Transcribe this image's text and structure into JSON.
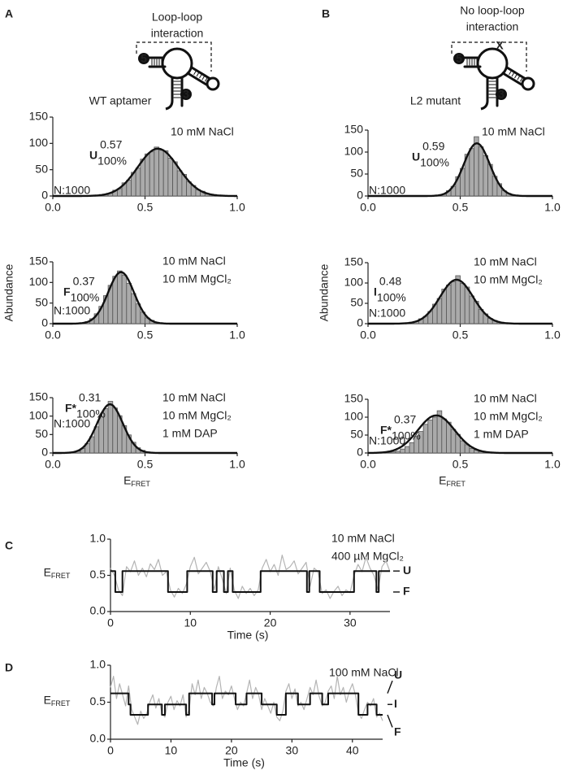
{
  "panels": [
    "A",
    "B",
    "C",
    "D"
  ],
  "diagrams": [
    {
      "label": [
        "Loop-loop",
        "interaction"
      ],
      "name": "WT aptamer",
      "ends": [
        "5",
        "3"
      ]
    },
    {
      "label": [
        "No loop-loop",
        "interaction"
      ],
      "mark": "X",
      "name": "L2 mutant",
      "ends": [
        "5",
        "3"
      ]
    }
  ],
  "chart_data": [
    {
      "type": "histogram",
      "color": "#aaaaaa",
      "fit_color": "#111111",
      "bins": [
        0.25,
        0.275,
        0.3,
        0.325,
        0.35,
        0.375,
        0.4,
        0.425,
        0.45,
        0.475,
        0.5,
        0.525,
        0.55,
        0.575,
        0.6,
        0.625,
        0.65,
        0.675,
        0.7,
        0.725,
        0.75,
        0.775,
        0.8,
        0.825,
        0.85,
        0.875
      ],
      "values": [
        2,
        3,
        5,
        11,
        14,
        25,
        30,
        45,
        53,
        70,
        80,
        84,
        93,
        87,
        86,
        72,
        65,
        48,
        41,
        27,
        20,
        12,
        9,
        4,
        3
      ],
      "fit": {
        "mean": 0.57,
        "sd": 0.11,
        "amplitude": 90
      },
      "state": "U",
      "fraction": "100%",
      "n_label": "N:1000",
      "conditions": [
        "10 mM NaCl"
      ],
      "xlim": [
        0,
        1
      ],
      "xticks": [
        {
          "value": 0,
          "label": "0.0"
        },
        0.5,
        {
          "value": 1,
          "label": "1.0"
        }
      ],
      "ylim": [
        0,
        150
      ],
      "yticks": [
        0,
        50,
        100,
        150
      ]
    },
    {
      "type": "histogram",
      "color": "#aaaaaa",
      "fit_color": "#111111",
      "bins": [
        0.35,
        0.375,
        0.4,
        0.425,
        0.45,
        0.475,
        0.5,
        0.525,
        0.55,
        0.575,
        0.6,
        0.625,
        0.65,
        0.675,
        0.7,
        0.725,
        0.75,
        0.775,
        0.8,
        0.825
      ],
      "values": [
        1,
        2,
        4,
        12,
        22,
        44,
        63,
        95,
        108,
        135,
        112,
        92,
        72,
        45,
        28,
        12,
        6,
        2,
        1
      ],
      "fit": {
        "mean": 0.59,
        "sd": 0.07,
        "amplitude": 120
      },
      "state": "U",
      "fraction": "100%",
      "n_label": "N:1000",
      "conditions": [
        "10 mM NaCl"
      ],
      "xlim": [
        0,
        1
      ],
      "xticks": [
        {
          "value": 0,
          "label": "0.0"
        },
        0.5,
        {
          "value": 1,
          "label": "1.0"
        }
      ],
      "ylim": [
        0,
        150
      ],
      "yticks": [
        0,
        50,
        100,
        150
      ]
    },
    {
      "type": "histogram",
      "color": "#aaaaaa",
      "fit_color": "#111111",
      "bins": [
        0.125,
        0.15,
        0.175,
        0.2,
        0.225,
        0.25,
        0.275,
        0.3,
        0.325,
        0.35,
        0.375,
        0.4,
        0.425,
        0.45,
        0.475,
        0.5,
        0.525,
        0.55,
        0.575,
        0.6
      ],
      "values": [
        1,
        2,
        5,
        12,
        24,
        42,
        68,
        93,
        115,
        128,
        118,
        98,
        73,
        48,
        28,
        14,
        8,
        3,
        1
      ],
      "fit": {
        "mean": 0.37,
        "sd": 0.07,
        "amplitude": 125
      },
      "state": "F",
      "fraction": "100%",
      "n_label": "N:1000",
      "conditions": [
        "10 mM NaCl",
        "10 mM MgCl₂"
      ],
      "ylabel": "Abundance",
      "xlim": [
        0,
        1
      ],
      "xticks": [
        {
          "value": 0,
          "label": "0.0"
        },
        0.5,
        {
          "value": 1,
          "label": "1.0"
        }
      ],
      "ylim": [
        0,
        150
      ],
      "yticks": [
        0,
        50,
        100,
        150
      ]
    },
    {
      "type": "histogram",
      "color": "#aaaaaa",
      "fit_color": "#111111",
      "bins": [
        0.2,
        0.225,
        0.25,
        0.275,
        0.3,
        0.325,
        0.35,
        0.375,
        0.4,
        0.425,
        0.45,
        0.475,
        0.5,
        0.525,
        0.55,
        0.575,
        0.6,
        0.625,
        0.65,
        0.675,
        0.7,
        0.725,
        0.75,
        0.775,
        0.8
      ],
      "values": [
        1,
        3,
        5,
        12,
        18,
        30,
        48,
        62,
        85,
        95,
        103,
        118,
        99,
        90,
        68,
        55,
        35,
        24,
        13,
        8,
        4,
        2,
        1,
        1
      ],
      "fit": {
        "mean": 0.48,
        "sd": 0.09,
        "amplitude": 108
      },
      "state": "I",
      "fraction": "100%",
      "n_label": "N:1000",
      "conditions": [
        "10 mM NaCl",
        "10 mM MgCl₂"
      ],
      "ylabel": "Abundance",
      "xlim": [
        0,
        1
      ],
      "xticks": [
        {
          "value": 0,
          "label": "0.0"
        },
        0.5,
        {
          "value": 1,
          "label": "1.0"
        }
      ],
      "ylim": [
        0,
        150
      ],
      "yticks": [
        0,
        50,
        100,
        150
      ]
    },
    {
      "type": "histogram",
      "color": "#aaaaaa",
      "fit_color": "#111111",
      "bins": [
        0.075,
        0.1,
        0.125,
        0.15,
        0.175,
        0.2,
        0.225,
        0.25,
        0.275,
        0.3,
        0.325,
        0.35,
        0.375,
        0.4,
        0.425,
        0.45,
        0.475,
        0.5,
        0.525,
        0.55
      ],
      "values": [
        1,
        2,
        5,
        12,
        25,
        44,
        71,
        98,
        120,
        140,
        122,
        101,
        74,
        49,
        29,
        14,
        7,
        3,
        1
      ],
      "fit": {
        "mean": 0.31,
        "sd": 0.07,
        "amplitude": 132
      },
      "state": "F*",
      "fraction": "100%",
      "n_label": "N:1000",
      "conditions": [
        "10 mM NaCl",
        "10 mM MgCl₂",
        "1 mM DAP"
      ],
      "xlabel": "E",
      "xlabel_sub": "FRET",
      "xlim": [
        0,
        1
      ],
      "xticks": [
        {
          "value": 0,
          "label": "0.0"
        },
        0.5,
        {
          "value": 1,
          "label": "1.0"
        }
      ],
      "ylim": [
        0,
        150
      ],
      "yticks": [
        0,
        50,
        100,
        150
      ]
    },
    {
      "type": "histogram",
      "color": "#aaaaaa",
      "fit_color": "#111111",
      "bins": [
        0.1,
        0.125,
        0.15,
        0.175,
        0.2,
        0.225,
        0.25,
        0.275,
        0.3,
        0.325,
        0.35,
        0.375,
        0.4,
        0.425,
        0.45,
        0.475,
        0.5,
        0.525,
        0.55,
        0.575,
        0.6,
        0.625,
        0.65,
        0.675,
        0.7
      ],
      "values": [
        1,
        3,
        5,
        11,
        18,
        29,
        46,
        60,
        80,
        92,
        100,
        118,
        95,
        86,
        66,
        52,
        34,
        23,
        13,
        8,
        4,
        2,
        1,
        1
      ],
      "fit": {
        "mean": 0.37,
        "sd": 0.1,
        "amplitude": 105
      },
      "state": "F*",
      "fraction": "100%",
      "n_label": "N:1000",
      "conditions": [
        "10 mM NaCl",
        "10 mM MgCl₂",
        "1 mM DAP"
      ],
      "xlabel": "E",
      "xlabel_sub": "FRET",
      "xlim": [
        0,
        1
      ],
      "xticks": [
        {
          "value": 0,
          "label": "0.0"
        },
        0.5,
        {
          "value": 1,
          "label": "1.0"
        }
      ],
      "ylim": [
        0,
        150
      ],
      "yticks": [
        0,
        50,
        100,
        150
      ]
    },
    {
      "type": "trace",
      "conditions": [
        "10 mM NaCl",
        "400 µM MgCl₂"
      ],
      "xlabel": "Time (s)",
      "ylabel": "E",
      "ylabel_sub": "FRET",
      "xlim": [
        0,
        35
      ],
      "xticks": [
        0,
        10,
        20,
        30
      ],
      "ylim": [
        0,
        1
      ],
      "yticks": [
        {
          "value": 0,
          "label": "0.0"
        },
        0.5,
        {
          "value": 1,
          "label": "1.0"
        }
      ],
      "series": [
        {
          "color": "#b4b4b4",
          "x": [
            0,
            0.5,
            1,
            1.5,
            2,
            2.5,
            3,
            3.5,
            4,
            4.5,
            5,
            5.5,
            6,
            6.5,
            7,
            7.5,
            8,
            8.5,
            9,
            9.5,
            10,
            10.5,
            11,
            11.5,
            12,
            12.5,
            13,
            13.5,
            14,
            14.5,
            15,
            15.5,
            16,
            16.5,
            17,
            17.5,
            18,
            18.5,
            19,
            19.5,
            20,
            20.5,
            21,
            21.5,
            22,
            22.5,
            23,
            23.5,
            24,
            24.5,
            25,
            25.5,
            26,
            26.5,
            27,
            27.5,
            28,
            28.5,
            29,
            29.5,
            30,
            30.5,
            31,
            31.5,
            32,
            32.5,
            33,
            33.5,
            34,
            34.5,
            35
          ],
          "values": [
            0.6,
            0.5,
            0.3,
            0.22,
            0.62,
            0.55,
            0.7,
            0.5,
            0.6,
            0.48,
            0.66,
            0.58,
            0.72,
            0.5,
            0.55,
            0.3,
            0.2,
            0.32,
            0.25,
            0.38,
            0.62,
            0.75,
            0.52,
            0.6,
            0.68,
            0.55,
            0.3,
            0.62,
            0.45,
            0.25,
            0.6,
            0.3,
            0.18,
            0.35,
            0.25,
            0.32,
            0.22,
            0.3,
            0.6,
            0.72,
            0.55,
            0.65,
            0.5,
            0.78,
            0.58,
            0.62,
            0.7,
            0.52,
            0.6,
            0.68,
            0.35,
            0.6,
            0.55,
            0.25,
            0.3,
            0.18,
            0.28,
            0.35,
            0.22,
            0.3,
            0.26,
            0.5,
            0.65,
            0.55,
            0.75,
            0.6,
            0.5,
            0.3,
            0.62,
            0.7,
            0.55
          ]
        },
        {
          "color": "#111111",
          "x": [
            0,
            0.6,
            0.6,
            1.5,
            1.5,
            7.2,
            7.2,
            9.6,
            9.6,
            12.8,
            12.8,
            13.3,
            13.3,
            14.2,
            14.2,
            14.7,
            14.7,
            15.3,
            15.3,
            18.8,
            18.8,
            24.6,
            24.6,
            24.9,
            24.9,
            26.2,
            26.2,
            30.5,
            30.5,
            33.3,
            33.3,
            33.6,
            33.6,
            35
          ],
          "values": [
            0.56,
            0.56,
            0.27,
            0.27,
            0.56,
            0.56,
            0.27,
            0.27,
            0.56,
            0.56,
            0.27,
            0.27,
            0.56,
            0.56,
            0.27,
            0.27,
            0.56,
            0.56,
            0.27,
            0.27,
            0.56,
            0.56,
            0.27,
            0.27,
            0.56,
            0.56,
            0.27,
            0.27,
            0.56,
            0.56,
            0.27,
            0.27,
            0.56,
            0.56
          ]
        }
      ],
      "state_labels": [
        {
          "label": "U",
          "value": 0.56
        },
        {
          "label": "F",
          "value": 0.27
        }
      ]
    },
    {
      "type": "trace",
      "conditions": [
        "100 mM NaCl"
      ],
      "xlabel": "Time (s)",
      "ylabel": "E",
      "ylabel_sub": "FRET",
      "xlim": [
        0,
        45
      ],
      "xticks": [
        0,
        10,
        20,
        30,
        40
      ],
      "ylim": [
        0,
        1
      ],
      "yticks": [
        {
          "value": 0,
          "label": "0.0"
        },
        0.5,
        {
          "value": 1,
          "label": "1.0"
        }
      ],
      "series": [
        {
          "color": "#b4b4b4",
          "x": [
            0,
            0.5,
            1,
            1.5,
            2,
            2.5,
            3,
            3.5,
            4,
            4.5,
            5,
            5.5,
            6,
            6.5,
            7,
            7.5,
            8,
            8.5,
            9,
            9.5,
            10,
            10.5,
            11,
            11.5,
            12,
            12.5,
            13,
            13.5,
            14,
            14.5,
            15,
            15.5,
            16,
            16.5,
            17,
            17.5,
            18,
            18.5,
            19,
            19.5,
            20,
            20.5,
            21,
            21.5,
            22,
            22.5,
            23,
            23.5,
            24,
            24.5,
            25,
            25.5,
            26,
            26.5,
            27,
            27.5,
            28,
            28.5,
            29,
            29.5,
            30,
            30.5,
            31,
            31.5,
            32,
            32.5,
            33,
            33.5,
            34,
            34.5,
            35,
            35.5,
            36,
            36.5,
            37,
            37.5,
            38,
            38.5,
            39,
            39.5,
            40,
            40.5,
            41,
            41.5,
            42,
            42.5,
            43,
            43.5,
            44,
            44.5,
            45
          ],
          "values": [
            0.7,
            0.85,
            0.55,
            0.75,
            0.6,
            0.45,
            0.72,
            0.4,
            0.3,
            0.2,
            0.38,
            0.28,
            0.35,
            0.5,
            0.6,
            0.42,
            0.55,
            0.35,
            0.3,
            0.5,
            0.58,
            0.4,
            0.52,
            0.45,
            0.6,
            0.3,
            0.4,
            0.75,
            0.6,
            0.8,
            0.55,
            0.7,
            0.62,
            0.5,
            0.45,
            0.7,
            0.85,
            0.55,
            0.65,
            0.6,
            0.72,
            0.55,
            0.4,
            0.5,
            0.45,
            0.62,
            0.8,
            0.55,
            0.7,
            0.6,
            0.4,
            0.55,
            0.45,
            0.35,
            0.5,
            0.3,
            0.25,
            0.38,
            0.65,
            0.75,
            0.55,
            0.68,
            0.45,
            0.5,
            0.4,
            0.55,
            0.7,
            0.6,
            0.8,
            0.58,
            0.45,
            0.5,
            0.65,
            0.72,
            0.55,
            0.85,
            0.6,
            0.7,
            0.5,
            0.65,
            0.75,
            0.6,
            0.35,
            0.28,
            0.4,
            0.5,
            0.45,
            0.55,
            0.3,
            0.35,
            0.25
          ]
        },
        {
          "color": "#111111",
          "x": [
            0,
            3,
            3,
            3.3,
            3.3,
            6.2,
            6.2,
            8.5,
            8.5,
            9,
            9,
            12.5,
            12.5,
            13,
            13,
            16.8,
            16.8,
            17.2,
            17.2,
            20.7,
            20.7,
            22.5,
            22.5,
            25,
            25,
            27.5,
            27.5,
            29,
            29,
            31,
            31,
            33,
            33,
            35,
            35,
            36,
            36,
            41,
            41,
            42.5,
            42.5,
            44,
            44,
            45
          ],
          "values": [
            0.62,
            0.62,
            0.47,
            0.47,
            0.33,
            0.33,
            0.47,
            0.47,
            0.33,
            0.33,
            0.47,
            0.47,
            0.33,
            0.33,
            0.62,
            0.62,
            0.47,
            0.47,
            0.62,
            0.62,
            0.47,
            0.47,
            0.62,
            0.62,
            0.47,
            0.47,
            0.33,
            0.33,
            0.62,
            0.62,
            0.47,
            0.47,
            0.62,
            0.62,
            0.47,
            0.47,
            0.62,
            0.62,
            0.33,
            0.33,
            0.47,
            0.47,
            0.33,
            0.33
          ]
        }
      ],
      "state_labels": [
        {
          "label": "U",
          "value": 0.62
        },
        {
          "label": "I",
          "value": 0.47
        },
        {
          "label": "F",
          "value": 0.33
        }
      ]
    }
  ]
}
